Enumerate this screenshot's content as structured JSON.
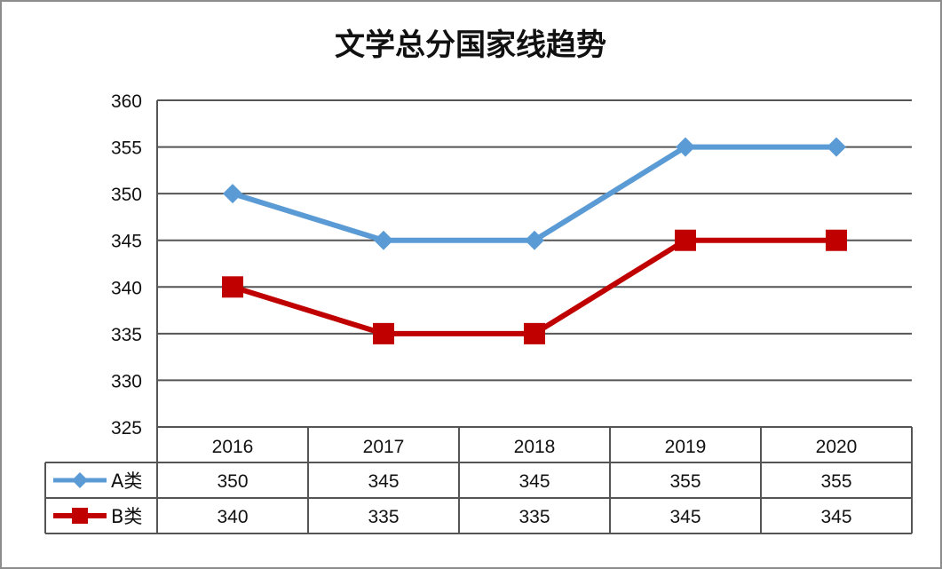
{
  "chart_data": {
    "type": "line",
    "title": "文学总分国家线趋势",
    "categories": [
      "2016",
      "2017",
      "2018",
      "2019",
      "2020"
    ],
    "ylim": [
      325,
      360
    ],
    "yticks": [
      "325",
      "330",
      "335",
      "340",
      "345",
      "350",
      "355",
      "360"
    ],
    "grid": true,
    "legend": "data-table",
    "data_table": true,
    "series": [
      {
        "name": "A类",
        "values": [
          350,
          345,
          345,
          355,
          355
        ],
        "color": "#5b9bd5",
        "marker": "diamond",
        "labels": [
          "350",
          "345",
          "345",
          "355",
          "355"
        ]
      },
      {
        "name": "B类",
        "values": [
          340,
          335,
          335,
          345,
          345
        ],
        "color": "#c00000",
        "marker": "square",
        "labels": [
          "340",
          "335",
          "335",
          "345",
          "345"
        ]
      }
    ]
  }
}
